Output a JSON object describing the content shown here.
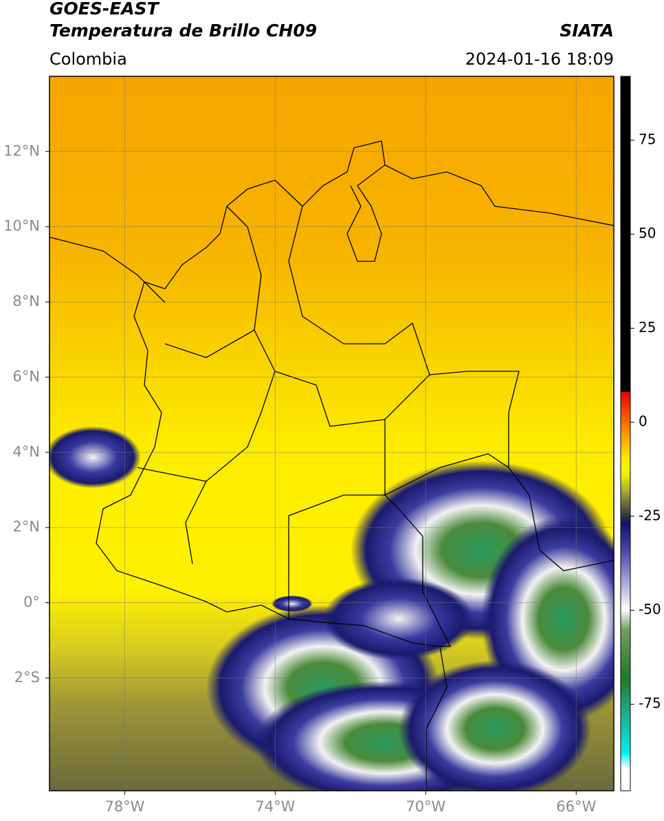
{
  "header": {
    "title": "GOES-EAST",
    "subtitle": "Temperatura de Brillo CH09",
    "source": "SIATA",
    "region": "Colombia",
    "datetime": "2024-01-16 18:09"
  },
  "map": {
    "xlim": [
      -80,
      -65
    ],
    "ylim": [
      -5,
      14
    ],
    "xticks": [
      {
        "value": -78,
        "label": "78°W"
      },
      {
        "value": -74,
        "label": "74°W"
      },
      {
        "value": -70,
        "label": "70°W"
      },
      {
        "value": -66,
        "label": "66°W"
      }
    ],
    "yticks": [
      {
        "value": 12,
        "label": "12°N"
      },
      {
        "value": 10,
        "label": "10°N"
      },
      {
        "value": 8,
        "label": "8°N"
      },
      {
        "value": 6,
        "label": "6°N"
      },
      {
        "value": 4,
        "label": "4°N"
      },
      {
        "value": 2,
        "label": "2°N"
      },
      {
        "value": 0,
        "label": "0°"
      },
      {
        "value": -2,
        "label": "2°S"
      }
    ]
  },
  "colorbar": {
    "lim": [
      -98,
      92
    ],
    "ticks": [
      75,
      50,
      25,
      0,
      -25,
      -50,
      -75
    ]
  }
}
